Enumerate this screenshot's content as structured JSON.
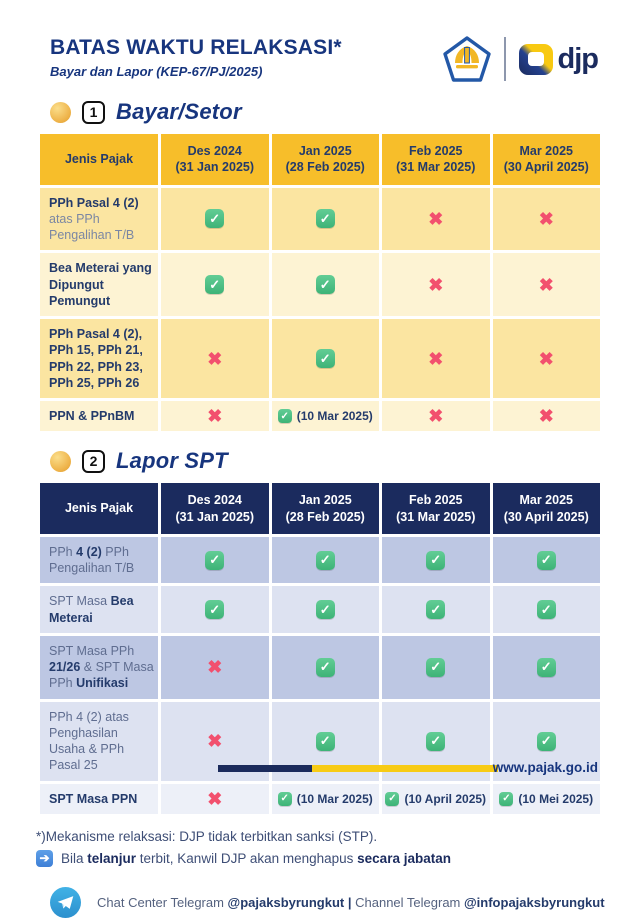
{
  "header": {
    "title": "BATAS WAKTU RELAKSASI*",
    "subtitle": "Bayar dan Lapor (KEP-67/PJ/2025)",
    "djp_label": "djp"
  },
  "accent_colors": {
    "navy": "#1B2B5E",
    "gold": "#F7BE2A",
    "green_check": "#3DB377",
    "red_cross": "#F2506E"
  },
  "section1": {
    "number": "1",
    "title": "Bayar/Setor",
    "table": {
      "headers": [
        [
          "Jenis Pajak",
          ""
        ],
        [
          "Des 2024",
          "(31 Jan 2025)"
        ],
        [
          "Jan 2025",
          "(28 Feb 2025)"
        ],
        [
          "Feb 2025",
          "(31 Mar 2025)"
        ],
        [
          "Mar 2025",
          "(30 April 2025)"
        ]
      ],
      "rows": [
        {
          "shade": "a",
          "label": [
            {
              "t": "PPh Pasal 4 (2)",
              "b": true
            },
            {
              "t": " atas PPh Pengalihan T/B",
              "b": false
            }
          ],
          "cells": [
            {
              "v": "check"
            },
            {
              "v": "check"
            },
            {
              "v": "cross"
            },
            {
              "v": "cross"
            }
          ]
        },
        {
          "shade": "b",
          "label": [
            {
              "t": "Bea Meterai yang Dipungut Pemungut",
              "b": true
            }
          ],
          "cells": [
            {
              "v": "check"
            },
            {
              "v": "check"
            },
            {
              "v": "cross"
            },
            {
              "v": "cross"
            }
          ]
        },
        {
          "shade": "a",
          "label": [
            {
              "t": "PPh Pasal 4 (2), PPh 15, PPh 21, PPh 22, PPh 23, PPh 25, PPh 26",
              "b": true
            }
          ],
          "cells": [
            {
              "v": "cross"
            },
            {
              "v": "check"
            },
            {
              "v": "cross"
            },
            {
              "v": "cross"
            }
          ]
        },
        {
          "shade": "b",
          "label": [
            {
              "t": "PPN & PPnBM",
              "b": true
            }
          ],
          "cells": [
            {
              "v": "cross"
            },
            {
              "v": "check",
              "text": "(10 Mar 2025)"
            },
            {
              "v": "cross"
            },
            {
              "v": "cross"
            }
          ]
        }
      ]
    }
  },
  "section2": {
    "number": "2",
    "title": "Lapor SPT",
    "table": {
      "headers": [
        [
          "Jenis Pajak",
          ""
        ],
        [
          "Des 2024",
          "(31 Jan 2025)"
        ],
        [
          "Jan 2025",
          "(28 Feb 2025)"
        ],
        [
          "Feb 2025",
          "(31 Mar 2025)"
        ],
        [
          "Mar 2025",
          "(30 April 2025)"
        ]
      ],
      "rows": [
        {
          "shade": "a",
          "label": [
            {
              "t": "PPh ",
              "b": false
            },
            {
              "t": "4 (2)",
              "b": true
            },
            {
              "t": " PPh Pengalihan T/B",
              "b": false
            }
          ],
          "cells": [
            {
              "v": "check"
            },
            {
              "v": "check"
            },
            {
              "v": "check"
            },
            {
              "v": "check"
            }
          ]
        },
        {
          "shade": "b",
          "label": [
            {
              "t": "SPT Masa ",
              "b": false
            },
            {
              "t": "Bea Meterai",
              "b": true
            }
          ],
          "cells": [
            {
              "v": "check"
            },
            {
              "v": "check"
            },
            {
              "v": "check"
            },
            {
              "v": "check"
            }
          ]
        },
        {
          "shade": "a",
          "label": [
            {
              "t": "SPT Masa PPh ",
              "b": false
            },
            {
              "t": "21/26",
              "b": true
            },
            {
              "t": " & SPT Masa PPh ",
              "b": false
            },
            {
              "t": "Unifikasi",
              "b": true
            }
          ],
          "cells": [
            {
              "v": "cross"
            },
            {
              "v": "check"
            },
            {
              "v": "check"
            },
            {
              "v": "check"
            }
          ]
        },
        {
          "shade": "b",
          "label": [
            {
              "t": "PPh 4 (2) atas Penghasilan Usaha & PPh Pasal 25",
              "b": false
            }
          ],
          "cells": [
            {
              "v": "cross"
            },
            {
              "v": "check"
            },
            {
              "v": "check"
            },
            {
              "v": "check"
            }
          ]
        },
        {
          "shade": "c",
          "label": [
            {
              "t": "SPT Masa PPN",
              "b": true
            }
          ],
          "cells": [
            {
              "v": "cross"
            },
            {
              "v": "check",
              "text": "(10 Mar 2025)"
            },
            {
              "v": "check",
              "text": "(10 April 2025)"
            },
            {
              "v": "check",
              "text": "(10 Mei 2025)"
            }
          ]
        }
      ]
    }
  },
  "notes": {
    "line1": "*)Mekanisme relaksasi: DJP tidak terbitkan sanksi (STP).",
    "line2_parts": [
      {
        "t": "Bila ",
        "b": false
      },
      {
        "t": "telanjur",
        "b": true
      },
      {
        "t": " terbit, Kanwil DJP akan menghapus ",
        "b": false
      },
      {
        "t": "secara jabatan",
        "b": true
      }
    ]
  },
  "telegram": {
    "parts": [
      {
        "t": "Chat Center Telegram ",
        "b": false
      },
      {
        "t": "@pajaksbyrungkut | ",
        "b": true
      },
      {
        "t": "Channel Telegram ",
        "b": false
      },
      {
        "t": "@infopajaksbyrungkut",
        "b": true
      }
    ]
  },
  "footer": {
    "website": "www.pajak.go.id"
  },
  "icons": {
    "check": "check-icon",
    "cross": "cross-icon",
    "check_glyph": "✓",
    "cross_glyph": "✖",
    "arrow_glyph": "→"
  }
}
